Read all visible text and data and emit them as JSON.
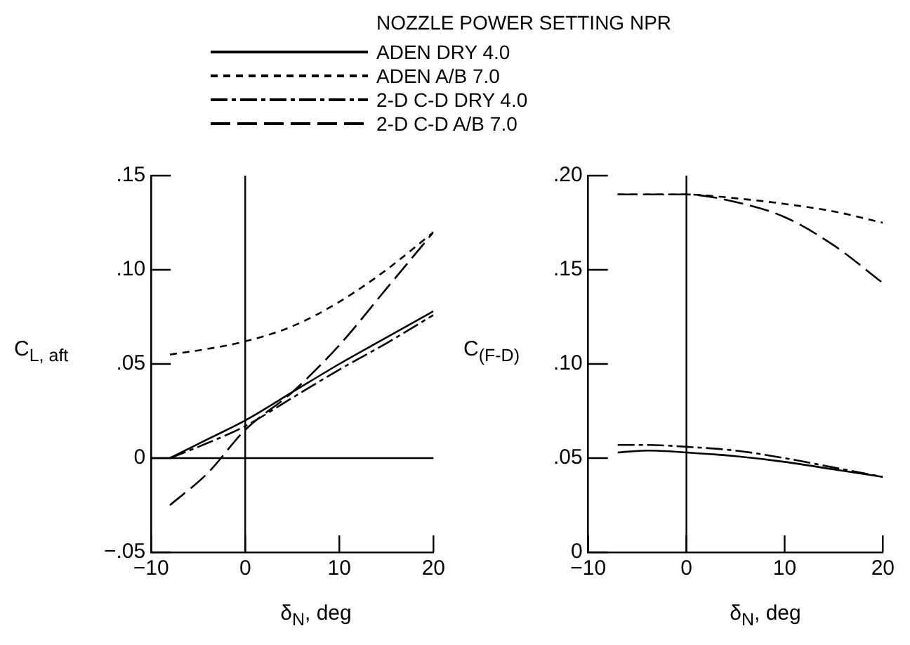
{
  "chart_data": [
    {
      "type": "line",
      "legend": "top",
      "legend_title": "NOZZLE POWER SETTING NPR",
      "xlabel": "δ$_{N}$, deg",
      "ylabel": "C$_{L, aft}$",
      "x": [
        -8,
        -4,
        0,
        5,
        10,
        15,
        20
      ],
      "xlim": [
        -10,
        20
      ],
      "xticks": [
        {
          "value": -10,
          "label": "−10"
        },
        0,
        10,
        20
      ],
      "ylim": [
        -0.05,
        0.15
      ],
      "yticks": [
        {
          "value": -0.05,
          "label": "−.05"
        },
        0,
        {
          "value": 0.05,
          "label": ".05"
        },
        {
          "value": 0.1,
          "label": ".10"
        },
        {
          "value": 0.15,
          "label": ".15"
        }
      ],
      "grid": false,
      "marker": "none",
      "ref_lines": [
        {
          "axis": "x",
          "value": 0
        },
        {
          "axis": "y",
          "value": 0
        }
      ],
      "series": [
        {
          "name": "ADEN DRY 4.0",
          "color": "#000000",
          "line_style": "solid",
          "values": [
            0,
            0.01,
            0.02,
            0.035,
            0.05,
            0.064,
            0.078
          ]
        },
        {
          "name": "ADEN A/B 7.0",
          "color": "#000000",
          "line_style": "dashed",
          "values": [
            0.055,
            0.058,
            0.062,
            0.07,
            0.083,
            0.1,
            0.12
          ]
        },
        {
          "name": "2-D C-D DRY 4.0",
          "color": "#000000",
          "line_style": "dashdot",
          "values": [
            0,
            0.008,
            0.017,
            0.032,
            0.047,
            0.061,
            0.076
          ]
        },
        {
          "name": "2-D C-D A/B 7.0",
          "color": "#000000",
          "line_style": "longdash",
          "values": [
            -0.025,
            -0.008,
            0.015,
            0.035,
            0.06,
            0.09,
            0.12
          ]
        }
      ]
    },
    {
      "type": "line",
      "xlabel": "δ$_{N}$, deg",
      "ylabel": "C$_{(F-D)}$",
      "x": [
        -7,
        -4,
        0,
        5,
        10,
        15,
        20
      ],
      "xlim": [
        -10,
        20
      ],
      "xticks": [
        {
          "value": -10,
          "label": "−10"
        },
        0,
        10,
        20
      ],
      "ylim": [
        0,
        0.2
      ],
      "yticks": [
        0,
        {
          "value": 0.05,
          "label": ".05"
        },
        {
          "value": 0.1,
          "label": ".10"
        },
        {
          "value": 0.15,
          "label": ".15"
        },
        {
          "value": 0.2,
          "label": ".20"
        }
      ],
      "grid": false,
      "marker": "none",
      "ref_lines": [
        {
          "axis": "x",
          "value": 0
        }
      ],
      "series": [
        {
          "color": "#000000",
          "line_style": "solid",
          "values": [
            0.053,
            0.054,
            0.053,
            0.051,
            0.048,
            0.044,
            0.04
          ]
        },
        {
          "color": "#000000",
          "line_style": "dashed",
          "values": [
            0.19,
            0.19,
            0.19,
            0.188,
            0.185,
            0.181,
            0.175
          ]
        },
        {
          "color": "#000000",
          "line_style": "dashdot",
          "values": [
            0.057,
            0.057,
            0.056,
            0.054,
            0.05,
            0.045,
            0.04
          ]
        },
        {
          "color": "#000000",
          "line_style": "longdash",
          "values": [
            0.19,
            0.19,
            0.19,
            0.186,
            0.178,
            0.163,
            0.143
          ]
        }
      ]
    }
  ]
}
